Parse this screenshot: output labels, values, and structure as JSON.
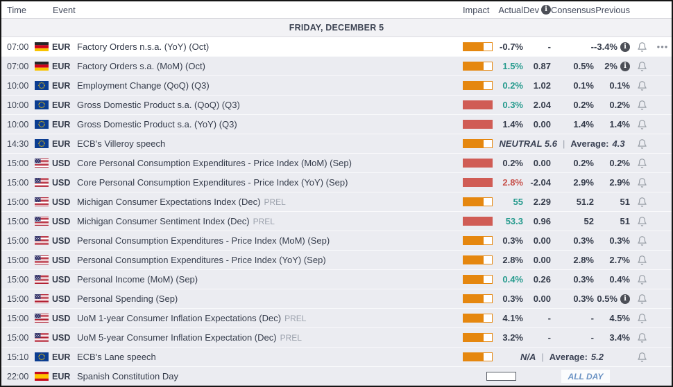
{
  "header": {
    "time": "Time",
    "event": "Event",
    "impact": "Impact",
    "actual": "Actual",
    "dev": "Dev",
    "consensus": "Consensus",
    "previous": "Previous"
  },
  "date_header": "FRIDAY, DECEMBER 5",
  "icons": {
    "dev_info": "info-icon",
    "previous_info": "info-icon",
    "bell": "notification-bell-icon",
    "row_menu": "ellipsis-icon",
    "info_glyph": "i",
    "menu_glyph": "•••"
  },
  "colors": {
    "impact_medium_orange": "#e5870f",
    "impact_high_red": "#d05c55",
    "actual_better_teal": "#279b8e",
    "actual_worse_red": "#c7524c",
    "text_dark": "#353c4b",
    "all_day_blue": "#6b93c4",
    "row_bg": "#ebecf1",
    "highlight_row_bg": "#ffffff"
  },
  "rows": [
    {
      "time": "07:00",
      "country": "de",
      "currency": "EUR",
      "event": "Factory Orders n.s.a. (YoY) (Oct)",
      "impact": "medium",
      "actual": "-0.7%",
      "actual_class": "",
      "dev": "-",
      "consensus": "-",
      "previous": "-3.4%",
      "previous_info": true,
      "bell": true,
      "menu": true,
      "highlight": true
    },
    {
      "time": "07:00",
      "country": "de",
      "currency": "EUR",
      "event": "Factory Orders s.a. (MoM) (Oct)",
      "impact": "medium",
      "actual": "1.5%",
      "actual_class": "pos",
      "dev": "0.87",
      "consensus": "0.5%",
      "previous": "2%",
      "previous_info": true,
      "bell": true
    },
    {
      "time": "10:00",
      "country": "eu",
      "currency": "EUR",
      "event": "Employment Change (QoQ) (Q3)",
      "impact": "medium",
      "actual": "0.2%",
      "actual_class": "pos",
      "dev": "1.02",
      "consensus": "0.1%",
      "previous": "0.1%",
      "bell": true
    },
    {
      "time": "10:00",
      "country": "eu",
      "currency": "EUR",
      "event": "Gross Domestic Product s.a. (QoQ) (Q3)",
      "impact": "high",
      "actual": "0.3%",
      "actual_class": "pos",
      "dev": "2.04",
      "consensus": "0.2%",
      "previous": "0.2%",
      "bell": true
    },
    {
      "time": "10:00",
      "country": "eu",
      "currency": "EUR",
      "event": "Gross Domestic Product s.a. (YoY) (Q3)",
      "impact": "high",
      "actual": "1.4%",
      "actual_class": "",
      "dev": "0.00",
      "consensus": "1.4%",
      "previous": "1.4%",
      "bell": true
    },
    {
      "time": "14:30",
      "country": "eu",
      "currency": "EUR",
      "event": "ECB's Villeroy speech",
      "impact": "medium",
      "special": {
        "label": "NEUTRAL 5.6",
        "sep": "|",
        "average_label": "Average:",
        "average_value": "4.3"
      },
      "bell": true
    },
    {
      "time": "15:00",
      "country": "us",
      "currency": "USD",
      "event": "Core Personal Consumption Expenditures - Price Index (MoM) (Sep)",
      "impact": "high",
      "actual": "0.2%",
      "actual_class": "",
      "dev": "0.00",
      "consensus": "0.2%",
      "previous": "0.2%",
      "bell": true
    },
    {
      "time": "15:00",
      "country": "us",
      "currency": "USD",
      "event": "Core Personal Consumption Expenditures - Price Index (YoY) (Sep)",
      "impact": "high",
      "actual": "2.8%",
      "actual_class": "neg",
      "dev": "-2.04",
      "consensus": "2.9%",
      "previous": "2.9%",
      "bell": true
    },
    {
      "time": "15:00",
      "country": "us",
      "currency": "USD",
      "event": "Michigan Consumer Expectations Index (Dec)",
      "suffix": "PREL",
      "impact": "medium",
      "actual": "55",
      "actual_class": "pos",
      "dev": "2.29",
      "consensus": "51.2",
      "previous": "51",
      "bell": true
    },
    {
      "time": "15:00",
      "country": "us",
      "currency": "USD",
      "event": "Michigan Consumer Sentiment Index (Dec)",
      "suffix": "PREL",
      "impact": "high",
      "actual": "53.3",
      "actual_class": "pos",
      "dev": "0.96",
      "consensus": "52",
      "previous": "51",
      "bell": true
    },
    {
      "time": "15:00",
      "country": "us",
      "currency": "USD",
      "event": "Personal Consumption Expenditures - Price Index (MoM) (Sep)",
      "impact": "medium",
      "actual": "0.3%",
      "actual_class": "",
      "dev": "0.00",
      "consensus": "0.3%",
      "previous": "0.3%",
      "bell": true
    },
    {
      "time": "15:00",
      "country": "us",
      "currency": "USD",
      "event": "Personal Consumption Expenditures - Price Index (YoY) (Sep)",
      "impact": "medium",
      "actual": "2.8%",
      "actual_class": "",
      "dev": "0.00",
      "consensus": "2.8%",
      "previous": "2.7%",
      "bell": true
    },
    {
      "time": "15:00",
      "country": "us",
      "currency": "USD",
      "event": "Personal Income (MoM) (Sep)",
      "impact": "medium",
      "actual": "0.4%",
      "actual_class": "pos",
      "dev": "0.26",
      "consensus": "0.3%",
      "previous": "0.4%",
      "bell": true
    },
    {
      "time": "15:00",
      "country": "us",
      "currency": "USD",
      "event": "Personal Spending (Sep)",
      "impact": "medium",
      "actual": "0.3%",
      "actual_class": "",
      "dev": "0.00",
      "consensus": "0.3%",
      "previous": "0.5%",
      "previous_info": true,
      "bell": true
    },
    {
      "time": "15:00",
      "country": "us",
      "currency": "USD",
      "event": "UoM 1-year Consumer Inflation Expectations (Dec)",
      "suffix": "PREL",
      "impact": "medium",
      "actual": "4.1%",
      "actual_class": "",
      "dev": "-",
      "consensus": "-",
      "previous": "4.5%",
      "bell": true
    },
    {
      "time": "15:00",
      "country": "us",
      "currency": "USD",
      "event": "UoM 5-year Consumer Inflation Expectation (Dec)",
      "suffix": "PREL",
      "impact": "medium",
      "actual": "3.2%",
      "actual_class": "",
      "dev": "-",
      "consensus": "-",
      "previous": "3.4%",
      "bell": true
    },
    {
      "time": "15:10",
      "country": "eu",
      "currency": "EUR",
      "event": "ECB's Lane speech",
      "impact": "medium",
      "special": {
        "label": "N/A",
        "sep": "|",
        "average_label": "Average:",
        "average_value": "5.2"
      },
      "bell": true
    },
    {
      "time": "22:00",
      "country": "es",
      "currency": "EUR",
      "event": "Spanish Constitution Day",
      "impact": "holiday",
      "badge": "ALL DAY",
      "bell": false
    }
  ]
}
